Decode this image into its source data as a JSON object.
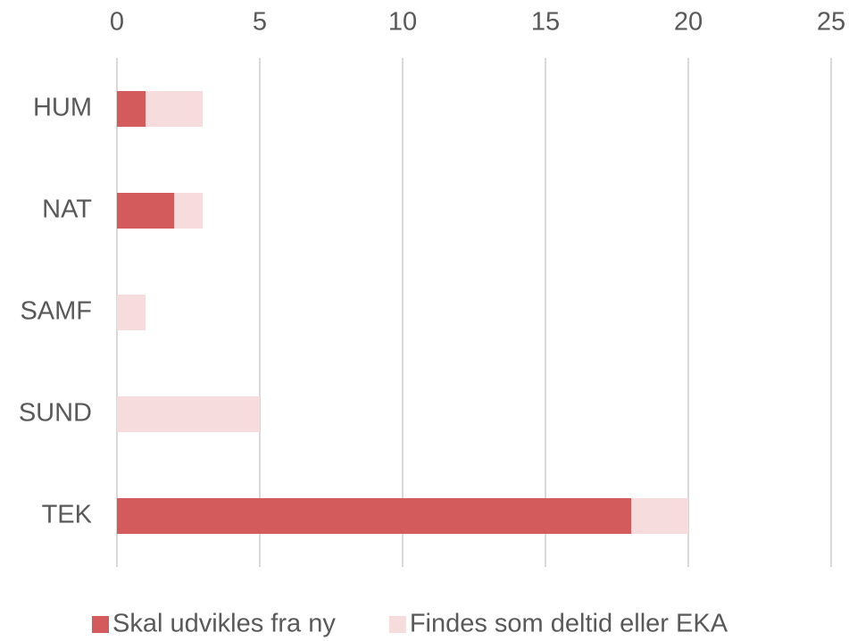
{
  "chart_data": {
    "type": "stacked_barh",
    "categories": [
      "HUM",
      "NAT",
      "SAMF",
      "SUND",
      "TEK"
    ],
    "series": [
      {
        "name": "Skal udvikles fra ny",
        "color": "#d35b5b",
        "values": [
          1,
          2,
          0,
          0,
          18
        ]
      },
      {
        "name": "Findes som deltid eller EKA",
        "color": "#f6dcdc",
        "values": [
          2,
          1,
          1,
          5,
          2
        ]
      }
    ],
    "xlim": [
      0,
      25
    ],
    "xticks": [
      0,
      5,
      10,
      15,
      20,
      25
    ],
    "grid": true,
    "legend": "bottom"
  }
}
